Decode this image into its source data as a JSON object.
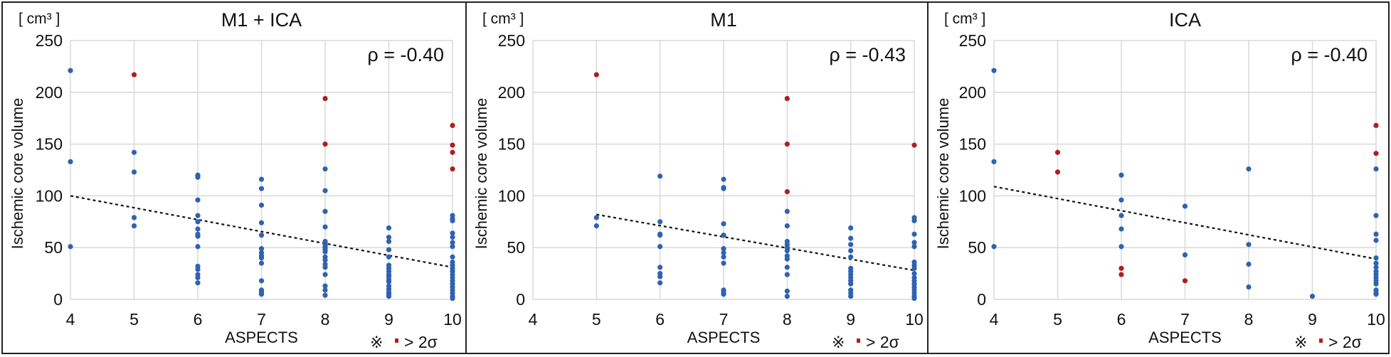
{
  "chart_data": [
    {
      "type": "scatter",
      "title": "M1 + ICA",
      "unit_label": "[ cm³ ]",
      "xlabel": "ASPECTS",
      "ylabel": "Ischemic core volume",
      "xlim": [
        4,
        10
      ],
      "ylim": [
        0,
        250
      ],
      "xticks": [
        "4",
        "5",
        "6",
        "7",
        "8",
        "9",
        "10"
      ],
      "yticks": [
        "0",
        "50",
        "100",
        "150",
        "200",
        "250"
      ],
      "grid": true,
      "annotation": "ρ = -0.40",
      "legend_note": {
        "prefix": "※",
        "label": "> 2σ"
      },
      "trendline": {
        "x": [
          4,
          10
        ],
        "y": [
          100,
          31
        ],
        "style": "dotted"
      },
      "series": [
        {
          "name": "normal",
          "color": "#2f62b0",
          "points": [
            [
              4,
              221
            ],
            [
              4,
              133
            ],
            [
              4,
              51
            ],
            [
              5,
              142
            ],
            [
              5,
              123
            ],
            [
              5,
              79
            ],
            [
              5,
              71
            ],
            [
              6,
              120
            ],
            [
              6,
              118
            ],
            [
              6,
              96
            ],
            [
              6,
              81
            ],
            [
              6,
              75
            ],
            [
              6,
              68
            ],
            [
              6,
              63
            ],
            [
              6,
              61
            ],
            [
              6,
              51
            ],
            [
              6,
              32
            ],
            [
              6,
              29
            ],
            [
              6,
              24
            ],
            [
              6,
              21
            ],
            [
              6,
              16
            ],
            [
              7,
              116
            ],
            [
              7,
              107
            ],
            [
              7,
              91
            ],
            [
              7,
              74
            ],
            [
              7,
              62
            ],
            [
              7,
              49
            ],
            [
              7,
              45
            ],
            [
              7,
              42
            ],
            [
              7,
              40
            ],
            [
              7,
              35
            ],
            [
              7,
              18
            ],
            [
              7,
              9
            ],
            [
              7,
              7
            ],
            [
              7,
              5
            ],
            [
              8,
              126
            ],
            [
              8,
              105
            ],
            [
              8,
              85
            ],
            [
              8,
              70
            ],
            [
              8,
              56
            ],
            [
              8,
              54
            ],
            [
              8,
              52
            ],
            [
              8,
              50
            ],
            [
              8,
              48
            ],
            [
              8,
              46
            ],
            [
              8,
              41
            ],
            [
              8,
              38
            ],
            [
              8,
              34
            ],
            [
              8,
              31
            ],
            [
              8,
              24
            ],
            [
              8,
              13
            ],
            [
              8,
              9
            ],
            [
              8,
              4
            ],
            [
              9,
              69
            ],
            [
              9,
              60
            ],
            [
              9,
              56
            ],
            [
              9,
              48
            ],
            [
              9,
              41
            ],
            [
              9,
              33
            ],
            [
              9,
              30
            ],
            [
              9,
              27
            ],
            [
              9,
              24
            ],
            [
              9,
              22
            ],
            [
              9,
              19
            ],
            [
              9,
              17
            ],
            [
              9,
              13
            ],
            [
              9,
              10
            ],
            [
              9,
              7
            ],
            [
              9,
              5
            ],
            [
              9,
              3
            ],
            [
              10,
              81
            ],
            [
              10,
              78
            ],
            [
              10,
              76
            ],
            [
              10,
              64
            ],
            [
              10,
              60
            ],
            [
              10,
              55
            ],
            [
              10,
              51
            ],
            [
              10,
              41
            ],
            [
              10,
              36
            ],
            [
              10,
              33
            ],
            [
              10,
              30
            ],
            [
              10,
              27
            ],
            [
              10,
              24
            ],
            [
              10,
              21
            ],
            [
              10,
              18
            ],
            [
              10,
              15
            ],
            [
              10,
              12
            ],
            [
              10,
              9
            ],
            [
              10,
              6
            ],
            [
              10,
              3
            ],
            [
              10,
              1
            ]
          ]
        },
        {
          "name": "> 2σ",
          "color": "#b01e1e",
          "points": [
            [
              5,
              217
            ],
            [
              8,
              194
            ],
            [
              8,
              150
            ],
            [
              10,
              168
            ],
            [
              10,
              149
            ],
            [
              10,
              142
            ],
            [
              10,
              126
            ]
          ]
        }
      ]
    },
    {
      "type": "scatter",
      "title": "M1",
      "unit_label": "[ cm³ ]",
      "xlabel": "ASPECTS",
      "ylabel": "Ischemic core volume",
      "xlim": [
        4,
        10
      ],
      "ylim": [
        0,
        250
      ],
      "xticks": [
        "4",
        "5",
        "6",
        "7",
        "8",
        "9",
        "10"
      ],
      "yticks": [
        "0",
        "50",
        "100",
        "150",
        "200",
        "250"
      ],
      "grid": true,
      "annotation": "ρ = -0.43",
      "legend_note": {
        "prefix": "※",
        "label": "> 2σ"
      },
      "trendline": {
        "x": [
          5,
          10
        ],
        "y": [
          82,
          28
        ],
        "style": "dotted"
      },
      "series": [
        {
          "name": "normal",
          "color": "#2f62b0",
          "points": [
            [
              5,
              79
            ],
            [
              5,
              71
            ],
            [
              6,
              119
            ],
            [
              6,
              75
            ],
            [
              6,
              63
            ],
            [
              6,
              62
            ],
            [
              6,
              51
            ],
            [
              6,
              31
            ],
            [
              6,
              25
            ],
            [
              6,
              22
            ],
            [
              6,
              16
            ],
            [
              7,
              116
            ],
            [
              7,
              108
            ],
            [
              7,
              107
            ],
            [
              7,
              73
            ],
            [
              7,
              62
            ],
            [
              7,
              49
            ],
            [
              7,
              45
            ],
            [
              7,
              41
            ],
            [
              7,
              35
            ],
            [
              7,
              9
            ],
            [
              7,
              7
            ],
            [
              7,
              5
            ],
            [
              8,
              85
            ],
            [
              8,
              71
            ],
            [
              8,
              56
            ],
            [
              8,
              53
            ],
            [
              8,
              50
            ],
            [
              8,
              47
            ],
            [
              8,
              42
            ],
            [
              8,
              39
            ],
            [
              8,
              31
            ],
            [
              8,
              24
            ],
            [
              8,
              8
            ],
            [
              8,
              3
            ],
            [
              9,
              69
            ],
            [
              9,
              59
            ],
            [
              9,
              53
            ],
            [
              9,
              47
            ],
            [
              9,
              41
            ],
            [
              9,
              30
            ],
            [
              9,
              27
            ],
            [
              9,
              24
            ],
            [
              9,
              21
            ],
            [
              9,
              18
            ],
            [
              9,
              15
            ],
            [
              9,
              9
            ],
            [
              9,
              6
            ],
            [
              9,
              3
            ],
            [
              10,
              79
            ],
            [
              10,
              76
            ],
            [
              10,
              63
            ],
            [
              10,
              55
            ],
            [
              10,
              51
            ],
            [
              10,
              36
            ],
            [
              10,
              33
            ],
            [
              10,
              30
            ],
            [
              10,
              25
            ],
            [
              10,
              21
            ],
            [
              10,
              18
            ],
            [
              10,
              15
            ],
            [
              10,
              12
            ],
            [
              10,
              9
            ],
            [
              10,
              6
            ],
            [
              10,
              3
            ],
            [
              10,
              1
            ]
          ]
        },
        {
          "name": "> 2σ",
          "color": "#b01e1e",
          "points": [
            [
              5,
              217
            ],
            [
              8,
              194
            ],
            [
              8,
              150
            ],
            [
              8,
              104
            ],
            [
              10,
              149
            ]
          ]
        }
      ]
    },
    {
      "type": "scatter",
      "title": "ICA",
      "unit_label": "[ cm³ ]",
      "xlabel": "ASPECTS",
      "ylabel": "Ischemic core volume",
      "xlim": [
        4,
        10
      ],
      "ylim": [
        0,
        250
      ],
      "xticks": [
        "4",
        "5",
        "6",
        "7",
        "8",
        "9",
        "10"
      ],
      "yticks": [
        "0",
        "50",
        "100",
        "150",
        "200",
        "250"
      ],
      "grid": true,
      "annotation": "ρ = -0.40",
      "legend_note": {
        "prefix": "※",
        "label": "> 2σ"
      },
      "trendline": {
        "x": [
          4,
          10
        ],
        "y": [
          109,
          39
        ],
        "style": "dotted"
      },
      "series": [
        {
          "name": "normal",
          "color": "#2f62b0",
          "points": [
            [
              4,
              221
            ],
            [
              4,
              133
            ],
            [
              4,
              51
            ],
            [
              6,
              120
            ],
            [
              6,
              96
            ],
            [
              6,
              81
            ],
            [
              6,
              68
            ],
            [
              6,
              51
            ],
            [
              7,
              90
            ],
            [
              7,
              43
            ],
            [
              8,
              126
            ],
            [
              8,
              53
            ],
            [
              8,
              34
            ],
            [
              8,
              12
            ],
            [
              9,
              3
            ],
            [
              10,
              126
            ],
            [
              10,
              81
            ],
            [
              10,
              63
            ],
            [
              10,
              57
            ],
            [
              10,
              40
            ],
            [
              10,
              35
            ],
            [
              10,
              31
            ],
            [
              10,
              27
            ],
            [
              10,
              24
            ],
            [
              10,
              21
            ],
            [
              10,
              18
            ],
            [
              10,
              15
            ],
            [
              10,
              9
            ],
            [
              10,
              6
            ],
            [
              10,
              5
            ]
          ]
        },
        {
          "name": "> 2σ",
          "color": "#b01e1e",
          "points": [
            [
              5,
              142
            ],
            [
              5,
              123
            ],
            [
              6,
              30
            ],
            [
              6,
              24
            ],
            [
              7,
              18
            ],
            [
              10,
              168
            ],
            [
              10,
              141
            ]
          ]
        }
      ]
    }
  ]
}
